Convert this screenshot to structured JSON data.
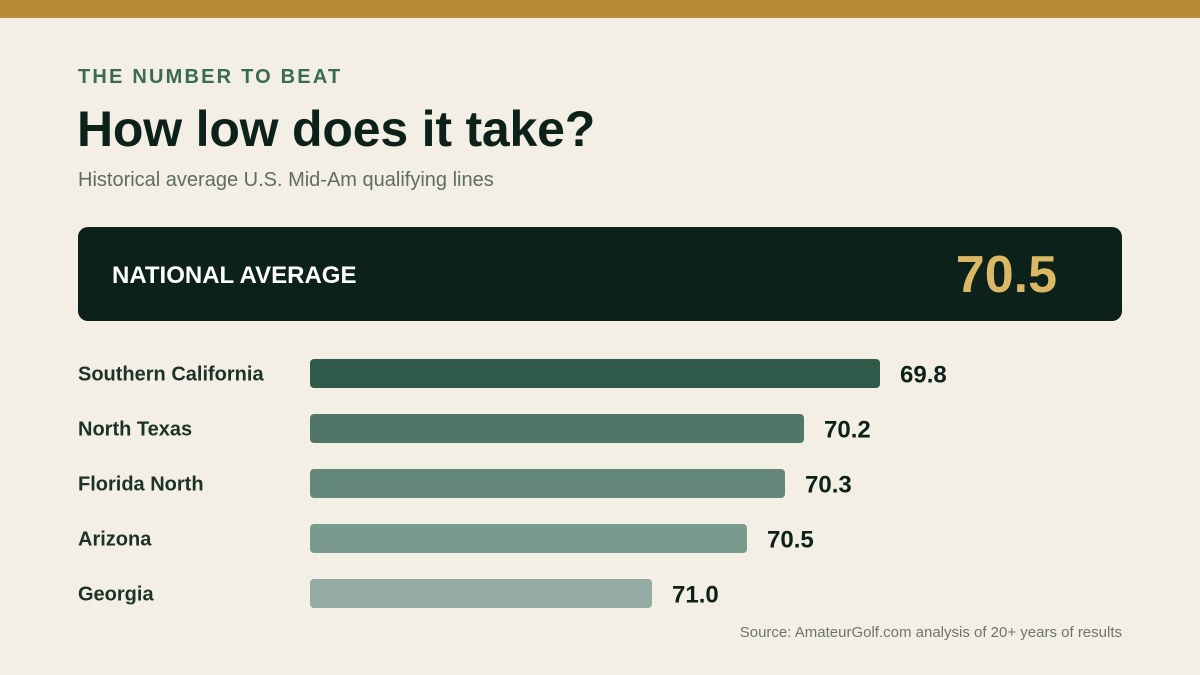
{
  "header": {
    "eyebrow": "THE NUMBER TO BEAT",
    "title": "How low does it take?",
    "subtitle": "Historical average U.S. Mid-Am qualifying lines"
  },
  "national": {
    "label": "NATIONAL AVERAGE",
    "value": "70.5"
  },
  "colors": {
    "accent_bar": "#b98b38",
    "panel_bg": "#0b211a",
    "national_value": "#dbb865",
    "bar_colors": [
      "#2f5a4a",
      "#4f7667",
      "#63887a",
      "#7a9a8e",
      "#93aba2"
    ]
  },
  "chart_data": {
    "type": "bar",
    "orientation": "horizontal",
    "categories": [
      "Southern California",
      "North Texas",
      "Florida North",
      "Arizona",
      "Georgia"
    ],
    "values": [
      69.8,
      70.2,
      70.3,
      70.5,
      71.0
    ],
    "value_labels": [
      "69.8",
      "70.2",
      "70.3",
      "70.5",
      "71.0"
    ],
    "note": "lower score = longer bar",
    "grid": false
  },
  "source": "Source: AmateurGolf.com analysis of 20+ years of results"
}
